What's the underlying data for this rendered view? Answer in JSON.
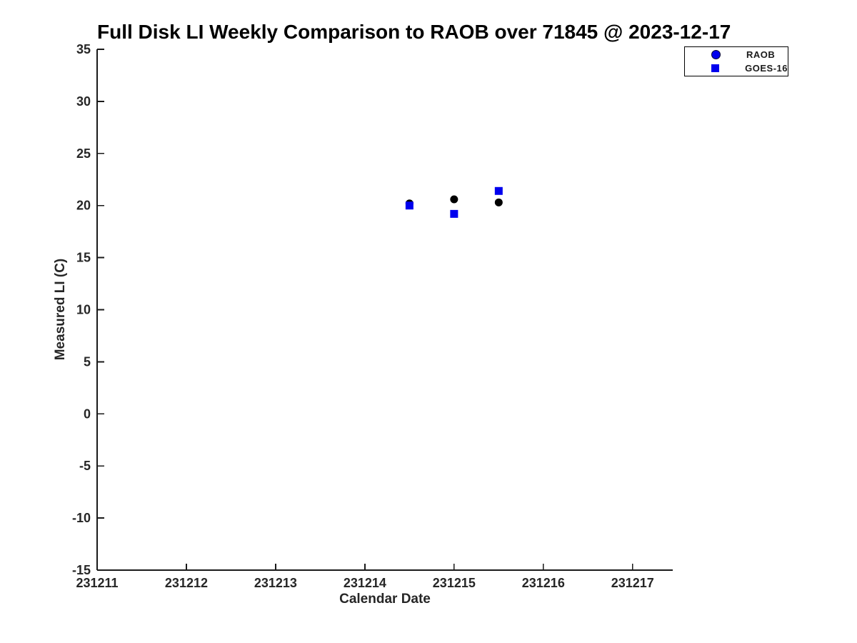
{
  "figure": {
    "background": "#ffffff"
  },
  "chart_data": {
    "type": "scatter",
    "title": "Full Disk LI Weekly Comparison to RAOB over 71845 @ 2023-12-17",
    "xlabel": "Calendar Date",
    "ylabel": "Measured LI (C)",
    "xlim": [
      231211,
      231217.45
    ],
    "ylim": [
      -15,
      35
    ],
    "x_ticks": [
      231211,
      231212,
      231213,
      231214,
      231215,
      231216,
      231217
    ],
    "y_ticks": [
      35,
      30,
      25,
      20,
      15,
      10,
      5,
      0,
      -5,
      -10,
      -15
    ],
    "grid": false,
    "legend": {
      "position": "top-right-outside",
      "entries": [
        "RAOB",
        "GOES-16"
      ]
    },
    "series": [
      {
        "name": "RAOB",
        "marker": "circle",
        "legend_color": "#0000ee",
        "plot_color": "#000000",
        "points": [
          {
            "x": 231214.5,
            "y": 20.2
          },
          {
            "x": 231215.0,
            "y": 20.6
          },
          {
            "x": 231215.5,
            "y": 20.3
          }
        ]
      },
      {
        "name": "GOES-16",
        "marker": "square",
        "legend_color": "#0000ee",
        "plot_color": "#0000ee",
        "points": [
          {
            "x": 231214.5,
            "y": 20.0
          },
          {
            "x": 231215.0,
            "y": 19.2
          },
          {
            "x": 231215.5,
            "y": 21.4
          }
        ]
      }
    ],
    "colors": {
      "spine": "#1a1a1a",
      "tick_label": "#262626",
      "title": "#000000"
    }
  }
}
